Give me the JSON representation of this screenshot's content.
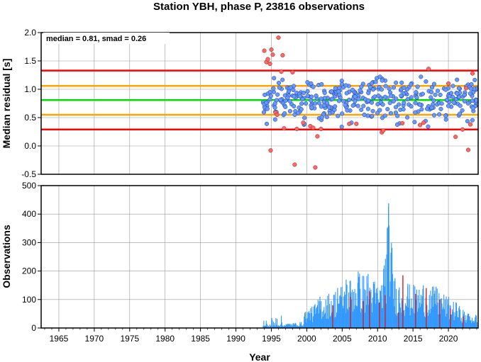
{
  "title": "Station YBH, phase P, 23816 observations",
  "xlabel": "Year",
  "annotation": "median = 0.81, smad = 0.26",
  "chart_data": [
    {
      "type": "scatter",
      "ylabel": "Median residual [s]",
      "xlim": [
        1962.5,
        2024.2
      ],
      "ylim": [
        -0.5,
        2.0
      ],
      "yticks": [
        "-0.5",
        "0.0",
        "0.5",
        "1.0",
        "1.5",
        "2.0"
      ],
      "grid": true,
      "median": 0.81,
      "smad": 0.26,
      "reference_lines": [
        {
          "value": 1.33,
          "color": "#ff0000"
        },
        {
          "value": 1.06,
          "color": "#ffa500"
        },
        {
          "value": 0.81,
          "color": "#00e000"
        },
        {
          "value": 0.55,
          "color": "#ffa500"
        },
        {
          "value": 0.29,
          "color": "#ff0000"
        }
      ],
      "colors": {
        "inlier": "#6699ff",
        "outlier": "#ff6666"
      },
      "outlier_points": [
        {
          "x": 1994.0,
          "y": 1.68
        },
        {
          "x": 1994.3,
          "y": 1.48
        },
        {
          "x": 1994.5,
          "y": 1.53
        },
        {
          "x": 1994.8,
          "y": 1.45
        },
        {
          "x": 1995.0,
          "y": 1.7
        },
        {
          "x": 1995.2,
          "y": 1.61
        },
        {
          "x": 1995.6,
          "y": 0.59
        },
        {
          "x": 1995.8,
          "y": 0.55
        },
        {
          "x": 1996.0,
          "y": 1.91
        },
        {
          "x": 1996.4,
          "y": 1.31
        },
        {
          "x": 1996.6,
          "y": 1.6
        },
        {
          "x": 1996.8,
          "y": 0.31
        },
        {
          "x": 1998.0,
          "y": 1.3
        },
        {
          "x": 1998.3,
          "y": -0.33
        },
        {
          "x": 1998.6,
          "y": 0.3
        },
        {
          "x": 1999.5,
          "y": 0.41
        },
        {
          "x": 2000.5,
          "y": 0.35
        },
        {
          "x": 2000.9,
          "y": 0.32
        },
        {
          "x": 2001.2,
          "y": -0.38
        },
        {
          "x": 2001.5,
          "y": 0.17
        },
        {
          "x": 2002.0,
          "y": 0.3
        },
        {
          "x": 1994.9,
          "y": -0.08
        },
        {
          "x": 2006.0,
          "y": 0.39
        },
        {
          "x": 2007.0,
          "y": 0.39
        },
        {
          "x": 2010.6,
          "y": 0.24
        },
        {
          "x": 2010.8,
          "y": 0.27
        },
        {
          "x": 2013.5,
          "y": 0.4
        },
        {
          "x": 2016.0,
          "y": 0.37
        },
        {
          "x": 2016.5,
          "y": 0.41
        },
        {
          "x": 2017.2,
          "y": 1.36
        },
        {
          "x": 2020.0,
          "y": 1.1
        },
        {
          "x": 2021.0,
          "y": 0.16
        },
        {
          "x": 2022.0,
          "y": 0.29
        },
        {
          "x": 2022.5,
          "y": 1.02
        },
        {
          "x": 2022.8,
          "y": -0.07
        },
        {
          "x": 2023.1,
          "y": 0.38
        },
        {
          "x": 2023.4,
          "y": 1.28
        }
      ]
    },
    {
      "type": "bar",
      "ylabel": "Observations",
      "xlim": [
        1962.5,
        2024.2
      ],
      "ylim": [
        0,
        500
      ],
      "xticks": [
        "1965",
        "1970",
        "1975",
        "1980",
        "1985",
        "1990",
        "1995",
        "2000",
        "2005",
        "2010",
        "2015",
        "2020"
      ],
      "yticks": [
        "0",
        "100",
        "200",
        "300",
        "400",
        "500"
      ],
      "grid": true,
      "colors": {
        "bars": "#3399ff",
        "highlight": "#cc2222"
      },
      "peaks": [
        {
          "x": 1995.0,
          "y": 35
        },
        {
          "x": 2000.5,
          "y": 70
        },
        {
          "x": 2001.8,
          "y": 110
        },
        {
          "x": 2004.3,
          "y": 140
        },
        {
          "x": 2005.5,
          "y": 170
        },
        {
          "x": 2007.2,
          "y": 198
        },
        {
          "x": 2008.6,
          "y": 190
        },
        {
          "x": 2010.5,
          "y": 150
        },
        {
          "x": 2011.5,
          "y": 438
        },
        {
          "x": 2012.4,
          "y": 175
        },
        {
          "x": 2014.2,
          "y": 155
        },
        {
          "x": 2016.4,
          "y": 150
        },
        {
          "x": 2018.2,
          "y": 145
        },
        {
          "x": 2021.0,
          "y": 90
        },
        {
          "x": 2022.8,
          "y": 50
        }
      ],
      "highlight_bars": [
        {
          "x": 2003.6,
          "y": 80
        },
        {
          "x": 2006.1,
          "y": 110
        },
        {
          "x": 2007.9,
          "y": 95
        },
        {
          "x": 2008.8,
          "y": 130
        },
        {
          "x": 2010.2,
          "y": 90
        },
        {
          "x": 2011.0,
          "y": 115
        },
        {
          "x": 2012.9,
          "y": 55
        },
        {
          "x": 2013.5,
          "y": 185
        },
        {
          "x": 2015.3,
          "y": 120
        },
        {
          "x": 2016.8,
          "y": 140
        },
        {
          "x": 2018.7,
          "y": 100
        },
        {
          "x": 2020.2,
          "y": 70
        },
        {
          "x": 2022.0,
          "y": 40
        }
      ]
    }
  ]
}
